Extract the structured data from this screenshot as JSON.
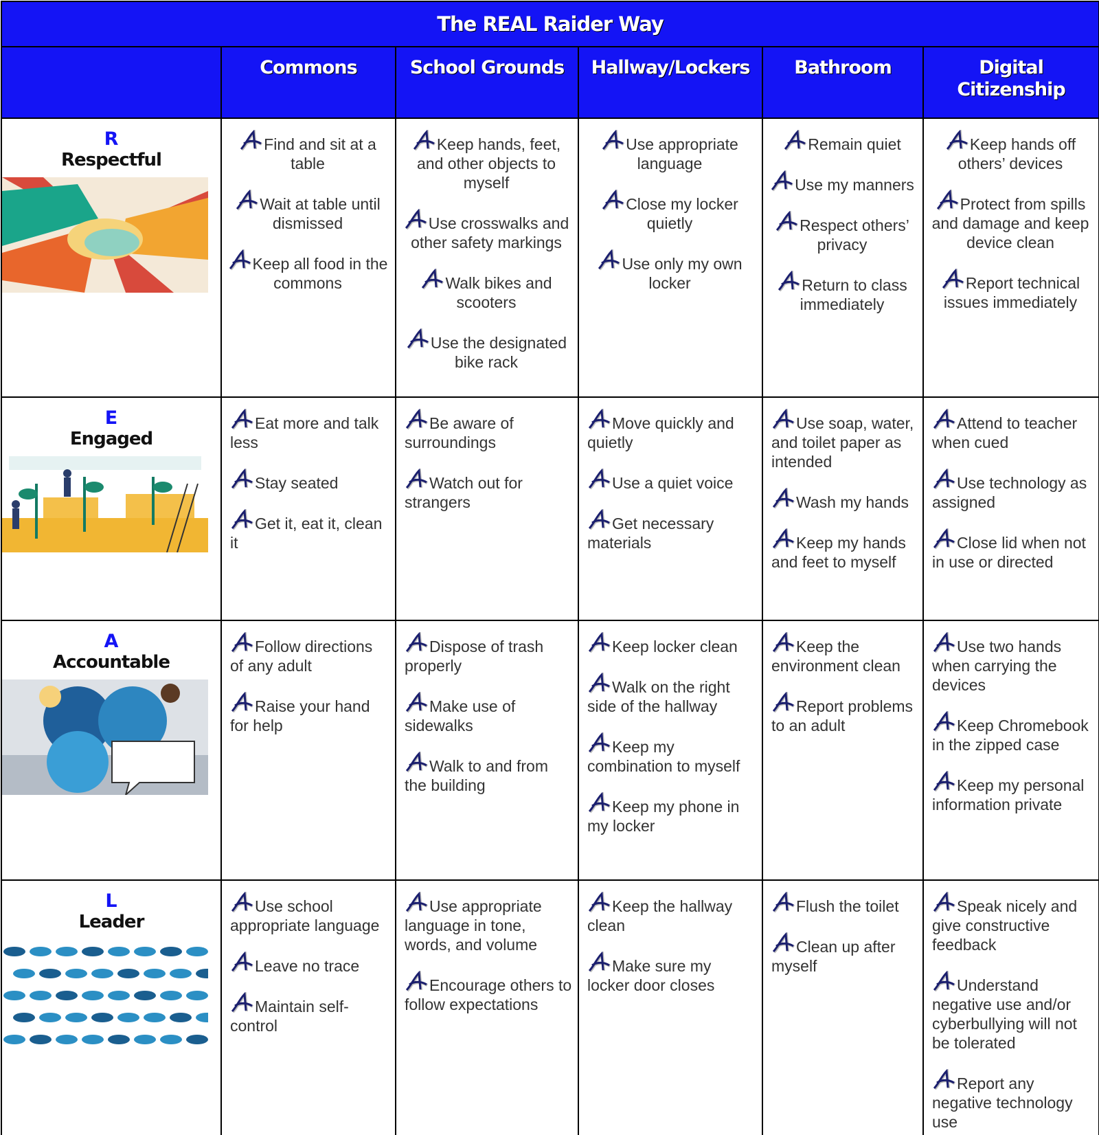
{
  "title": "The REAL Raider Way",
  "columns": [
    "Commons",
    "School Grounds",
    "Hallway/Lockers",
    "Bathroom",
    "Digital Citizenship"
  ],
  "rows": [
    {
      "letter": "R",
      "word": "Respectful",
      "cells": [
        [
          "Find and sit at a table",
          "Wait at table until dismissed",
          "Keep all food in the commons"
        ],
        [
          "Keep hands, feet, and other objects to myself",
          "Use crosswalks and other safety markings",
          "Walk bikes and scooters",
          "Use the designated bike rack"
        ],
        [
          "Use appropriate language",
          "Close my locker quietly",
          "Use only my own locker"
        ],
        [
          "Remain quiet",
          "Use my manners",
          "Respect others’ privacy",
          "Return to class immediately"
        ],
        [
          "Keep hands off others’ devices",
          "Protect from spills and damage and keep device clean",
          "Report technical issues immediately"
        ]
      ]
    },
    {
      "letter": "E",
      "word": "Engaged",
      "cells": [
        [
          "Eat more and talk less",
          "Stay seated",
          "Get it, eat it, clean it"
        ],
        [
          "Be aware of surroundings",
          "Watch out for strangers"
        ],
        [
          "Move quickly and quietly",
          "Use a quiet voice",
          "Get necessary materials"
        ],
        [
          "Use soap, water, and toilet paper as intended",
          "Wash my hands",
          "Keep my hands and feet to myself"
        ],
        [
          "Attend to teacher when cued",
          "Use technology as assigned",
          "Close lid when not in use or directed"
        ]
      ]
    },
    {
      "letter": "A",
      "word": "Accountable",
      "cells": [
        [
          "Follow directions of any adult",
          "Raise your hand for help"
        ],
        [
          "Dispose of trash properly",
          "Make use of sidewalks",
          "Walk to and from the building"
        ],
        [
          "Keep locker clean",
          "Walk on the right side of the hallway",
          "Keep my combination to myself",
          "Keep my phone in my locker"
        ],
        [
          "Keep the environment clean",
          "Report problems to an adult"
        ],
        [
          "Use two hands when carrying the devices",
          "Keep Chromebook in the zipped case",
          "Keep my personal information private"
        ]
      ]
    },
    {
      "letter": "L",
      "word": "Leader",
      "cells": [
        [
          "Use school appropriate language",
          "Leave no trace",
          "Maintain self-control"
        ],
        [
          "Use appropriate language in tone, words, and volume",
          "Encourage others to follow expectations"
        ],
        [
          "Keep the hallway clean",
          "Make sure my locker door closes"
        ],
        [
          "Flush the toilet",
          "Clean up after myself"
        ],
        [
          "Speak nicely and give constructive feedback",
          "Understand negative use and/or cyberbullying will not be tolerated",
          "Report any negative technology use"
        ]
      ]
    }
  ]
}
